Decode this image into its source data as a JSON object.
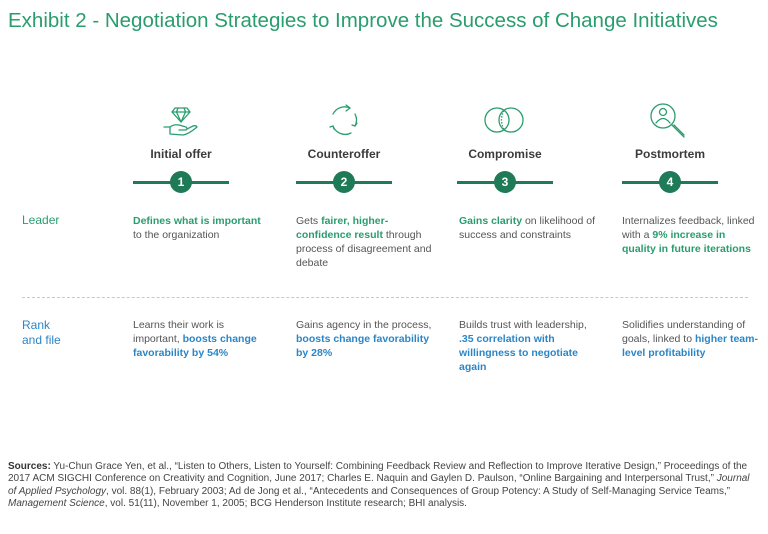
{
  "title": "Exhibit 2 - Negotiation Strategies to Improve the Success of Change Initiatives",
  "colors": {
    "green": "#2a9d6e",
    "dark_green": "#1f7a57",
    "blue": "#2a86c7"
  },
  "stages": [
    {
      "label": "Initial offer",
      "number": "1",
      "icon": "hand-diamond-icon"
    },
    {
      "label": "Counteroffer",
      "number": "2",
      "icon": "cycle-arrows-icon"
    },
    {
      "label": "Compromise",
      "number": "3",
      "icon": "overlapping-circles-icon"
    },
    {
      "label": "Postmortem",
      "number": "4",
      "icon": "person-magnifier-icon"
    }
  ],
  "rows": {
    "leader": {
      "label": "Leader",
      "cells": [
        {
          "hl": "Defines what is important",
          "after": " to the organization"
        },
        {
          "before": "Gets ",
          "hl": "fairer, higher-confidence result",
          "after": " through process of disagreement and debate"
        },
        {
          "hl": "Gains clarity",
          "after": " on likelihood of success and constraints"
        },
        {
          "before": "Internalizes feedback, linked with a ",
          "hl": "9% increase in quality in future iterations"
        }
      ]
    },
    "rank": {
      "label_line1": "Rank",
      "label_line2": "and file",
      "cells": [
        {
          "before": "Learns their work is important, ",
          "hl": "boosts change favorability by 54%"
        },
        {
          "before": "Gains agency in the process, ",
          "hl": "boosts change favorability by 28%"
        },
        {
          "before": "Builds trust with leadership, ",
          "hl": ".35 correlation with willingness to negotiate again"
        },
        {
          "before": "Solidifies understanding of goals, linked to ",
          "hl": "higher team-level profitability"
        }
      ]
    }
  },
  "sources": {
    "label": "Sources:",
    "part1": " Yu-Chun Grace Yen, et al., “Listen to Others, Listen to Yourself: Combining Feedback Review and Reflection to Improve Iterative Design,” Proceedings of the 2017 ACM SIGCHI Conference on Creativity and Cognition, June 2017; Charles E. Naquin and Gaylen D. Paulson, “Online Bargaining and Interpersonal Trust,” ",
    "journal1": "Journal of Applied Psychology",
    "part2": ", vol. 88(1), February 2003; Ad de Jong et al., “Antecedents and Consequences of Group Potency: A Study of Self-Managing Service Teams,” ",
    "journal2": "Management Science",
    "part3": ", vol. 51(11), November 1, 2005; BCG Henderson Institute research; BHI analysis."
  }
}
